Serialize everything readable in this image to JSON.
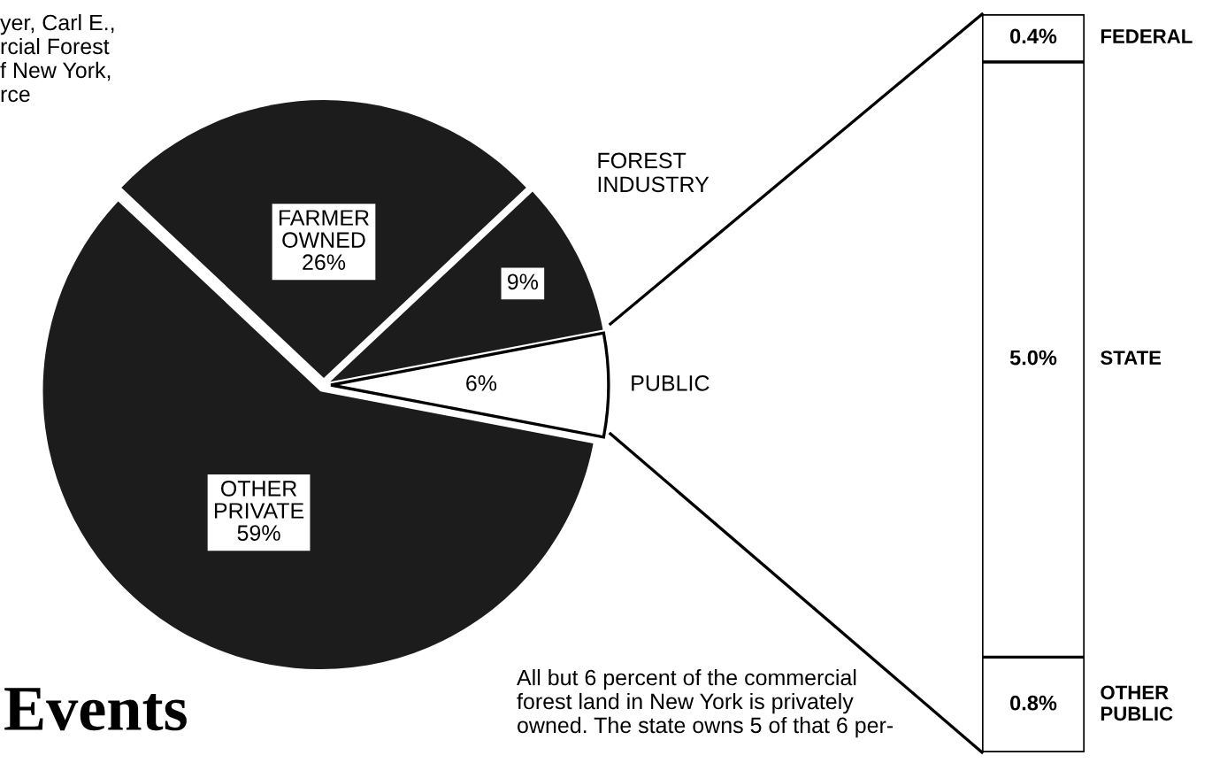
{
  "chart_data": [
    {
      "type": "pie",
      "categories": [
        "PUBLIC",
        "FOREST INDUSTRY",
        "FARMER OWNED",
        "OTHER PRIVATE"
      ],
      "values": [
        6,
        9,
        26,
        59
      ],
      "colors": [
        "#ffffff",
        "#1c1c1c",
        "#1c1c1c",
        "#1c1c1c"
      ],
      "value_labels": [
        "6%",
        "9%",
        "26%",
        "59%"
      ],
      "annotations": [
        "yer, Carl E.,\nrcial Forest\nf New York,\nrce",
        "Events",
        "All but 6 percent of the commercial\nforest land in New York is privately\nowned. The state owns 5 of that 6 per-"
      ]
    },
    {
      "type": "bar",
      "stacked": true,
      "categories": [
        null
      ],
      "series": [
        {
          "name": "OTHER\nPUBLIC",
          "color": "#ffffff",
          "values": [
            0.8
          ],
          "value_labels": [
            "0.8%"
          ]
        },
        {
          "name": "STATE",
          "color": "#ffffff",
          "values": [
            5.0
          ],
          "value_labels": [
            "5.0%"
          ]
        },
        {
          "name": "FEDERAL",
          "color": "#ffffff",
          "values": [
            0.4
          ],
          "value_labels": [
            "0.4%"
          ]
        }
      ]
    }
  ]
}
